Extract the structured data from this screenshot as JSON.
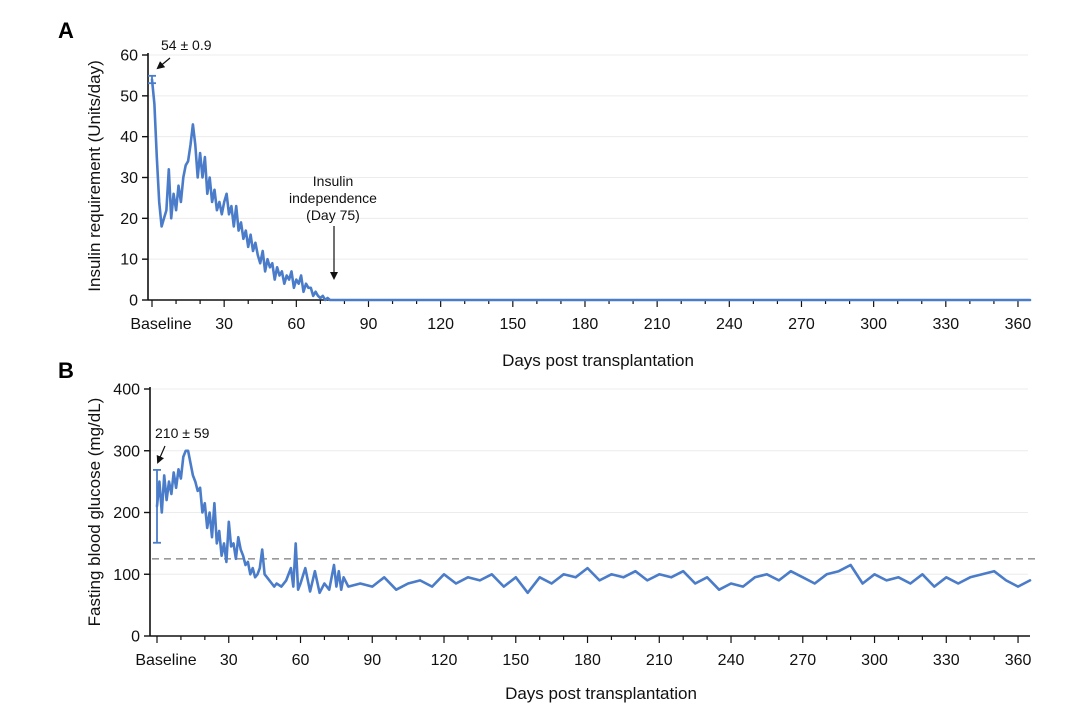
{
  "chart_data": [
    {
      "panel": "A",
      "type": "line",
      "ylabel": "Insulin requirement (Units/day)",
      "xlabel": "Days post transplantation",
      "xlim": [
        0,
        365
      ],
      "ylim": [
        0,
        60
      ],
      "yticks": [
        0,
        10,
        20,
        30,
        40,
        50,
        60
      ],
      "xticks": [
        0,
        30,
        60,
        90,
        120,
        150,
        180,
        210,
        240,
        270,
        300,
        330,
        360
      ],
      "xtick_labels": [
        "Baseline",
        "30",
        "60",
        "90",
        "120",
        "150",
        "180",
        "210",
        "240",
        "270",
        "300",
        "330",
        "360"
      ],
      "series_color": "#4a7cc9",
      "series": [
        {
          "x": [
            0,
            1,
            2,
            3,
            4,
            5,
            6,
            7,
            8,
            9,
            10,
            11,
            12,
            13,
            14,
            15,
            16,
            17,
            18,
            19,
            20,
            21,
            22,
            23,
            24,
            25,
            26,
            27,
            28,
            29,
            30,
            31,
            32,
            33,
            34,
            35,
            36,
            37,
            38,
            39,
            40,
            41,
            42,
            43,
            44,
            45,
            46,
            47,
            48,
            49,
            50,
            51,
            52,
            53,
            54,
            55,
            56,
            57,
            58,
            59,
            60,
            61,
            62,
            63,
            64,
            65,
            66,
            67,
            68,
            69,
            70,
            71,
            72,
            73,
            74,
            75,
            80,
            100,
            150,
            200,
            250,
            300,
            350,
            365
          ],
          "y": [
            54,
            48,
            35,
            24,
            18,
            20,
            22,
            32,
            20,
            26,
            22,
            28,
            24,
            30,
            33,
            34,
            38,
            43,
            38,
            30,
            36,
            30,
            35,
            26,
            30,
            24,
            27,
            22,
            24,
            21,
            24,
            26,
            21,
            23,
            18,
            23,
            17,
            19,
            15,
            17,
            13,
            16,
            12,
            14,
            11,
            9,
            12,
            7,
            10,
            8,
            9,
            5,
            8,
            6,
            7,
            4,
            6,
            5,
            7,
            3,
            5,
            4,
            6,
            2,
            4,
            3,
            3,
            1,
            2,
            1,
            0.5,
            1,
            0,
            0.5,
            0,
            0,
            0,
            0,
            0,
            0,
            0,
            0,
            0,
            0
          ]
        }
      ],
      "error_bar": {
        "x": 0,
        "low": 53.1,
        "high": 54.9
      },
      "annotations": [
        {
          "text": "54 ± 0.9",
          "x": 0,
          "y": 54
        },
        {
          "lines": [
            "Insulin",
            "independence",
            "(Day 75)"
          ],
          "x": 75,
          "y": 0
        }
      ]
    },
    {
      "panel": "B",
      "type": "line",
      "ylabel": "Fasting blood glucose (mg/dL)",
      "xlabel": "Days post transplantation",
      "xlim": [
        0,
        365
      ],
      "ylim": [
        0,
        400
      ],
      "yticks": [
        0,
        100,
        200,
        300,
        400
      ],
      "xticks": [
        0,
        30,
        60,
        90,
        120,
        150,
        180,
        210,
        240,
        270,
        300,
        330,
        360
      ],
      "xtick_labels": [
        "Baseline",
        "30",
        "60",
        "90",
        "120",
        "150",
        "180",
        "210",
        "240",
        "270",
        "300",
        "330",
        "360"
      ],
      "series_color": "#4a7cc9",
      "reference_line": {
        "y": 125,
        "style": "dashed",
        "color": "#999999"
      },
      "series": [
        {
          "x": [
            0,
            1,
            2,
            3,
            4,
            5,
            6,
            7,
            8,
            9,
            10,
            11,
            12,
            13,
            14,
            15,
            16,
            17,
            18,
            19,
            20,
            21,
            22,
            23,
            24,
            25,
            26,
            27,
            28,
            29,
            30,
            31,
            32,
            33,
            34,
            35,
            36,
            37,
            38,
            39,
            40,
            41,
            42,
            43,
            44,
            45,
            46,
            47,
            48,
            49,
            50,
            52,
            54,
            56,
            57,
            58,
            59,
            60,
            62,
            64,
            66,
            68,
            70,
            72,
            74,
            75,
            76,
            77,
            78,
            80,
            85,
            90,
            95,
            100,
            105,
            110,
            115,
            120,
            125,
            130,
            135,
            140,
            145,
            150,
            155,
            160,
            165,
            170,
            175,
            180,
            185,
            190,
            195,
            200,
            205,
            210,
            215,
            220,
            225,
            230,
            235,
            240,
            245,
            250,
            255,
            260,
            265,
            270,
            275,
            280,
            285,
            290,
            295,
            300,
            305,
            310,
            315,
            320,
            325,
            330,
            335,
            340,
            345,
            350,
            355,
            360,
            365
          ],
          "y": [
            210,
            250,
            200,
            260,
            220,
            250,
            230,
            265,
            240,
            270,
            255,
            290,
            300,
            300,
            280,
            260,
            250,
            235,
            240,
            200,
            215,
            175,
            200,
            160,
            215,
            150,
            170,
            130,
            150,
            120,
            185,
            145,
            150,
            125,
            160,
            140,
            130,
            115,
            120,
            100,
            110,
            95,
            100,
            110,
            140,
            100,
            95,
            90,
            85,
            80,
            85,
            80,
            90,
            110,
            80,
            150,
            75,
            85,
            110,
            72,
            105,
            70,
            85,
            75,
            115,
            80,
            105,
            75,
            95,
            80,
            85,
            80,
            95,
            75,
            85,
            90,
            80,
            100,
            85,
            95,
            90,
            100,
            80,
            95,
            70,
            95,
            85,
            100,
            95,
            110,
            90,
            100,
            95,
            105,
            90,
            100,
            95,
            105,
            85,
            95,
            75,
            85,
            80,
            95,
            100,
            90,
            105,
            95,
            85,
            100,
            105,
            115,
            85,
            100,
            90,
            95,
            85,
            100,
            80,
            95,
            85,
            95,
            100,
            105,
            90,
            80,
            90
          ]
        }
      ],
      "error_bar": {
        "x": 0,
        "low": 151,
        "high": 269
      },
      "annotations": [
        {
          "text": "210 ± 59",
          "x": 0,
          "y": 210
        }
      ]
    }
  ]
}
